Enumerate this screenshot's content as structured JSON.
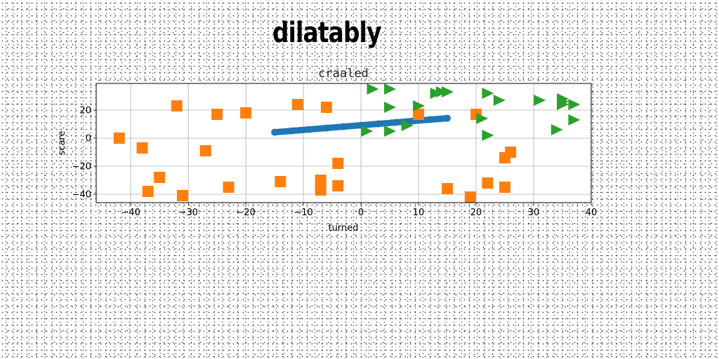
{
  "heading": "dilatably",
  "chart_data": {
    "type": "scatter",
    "title": "craaled",
    "xlabel": "turned",
    "ylabel": "scare",
    "xlim": [
      -46,
      40
    ],
    "ylim": [
      -46,
      39
    ],
    "xticks": [
      -40,
      -30,
      -20,
      -10,
      0,
      10,
      20,
      30,
      40
    ],
    "yticks": [
      -40,
      -20,
      0,
      20
    ],
    "grid": true,
    "series": [
      {
        "marker": "line-dots",
        "color": "#1f77b4",
        "points": [
          [
            -15,
            4.2
          ],
          [
            -12,
            5.2
          ],
          [
            -9,
            6.2
          ],
          [
            -6,
            7.2
          ],
          [
            -3,
            8.2
          ],
          [
            0,
            9.2
          ],
          [
            3,
            10.2
          ],
          [
            6,
            11.2
          ],
          [
            9,
            12.2
          ],
          [
            12,
            13.2
          ],
          [
            15,
            14.2
          ]
        ]
      },
      {
        "marker": "square",
        "color": "#ff7f0e",
        "points": [
          [
            -42,
            0
          ],
          [
            -38,
            -7
          ],
          [
            -37,
            -38
          ],
          [
            -35,
            -28
          ],
          [
            -32,
            23
          ],
          [
            -31,
            -41
          ],
          [
            -27,
            -9
          ],
          [
            -25,
            17
          ],
          [
            -23,
            -35
          ],
          [
            -20,
            18
          ],
          [
            -14,
            -31
          ],
          [
            -11,
            24
          ],
          [
            -7,
            -30
          ],
          [
            -7,
            -33
          ],
          [
            -7,
            -37
          ],
          [
            -6,
            22
          ],
          [
            -4,
            -18
          ],
          [
            -4,
            -34
          ],
          [
            10,
            17
          ],
          [
            15,
            -36
          ],
          [
            19,
            -42
          ],
          [
            20,
            17
          ],
          [
            22,
            -32
          ],
          [
            25,
            -35
          ],
          [
            25,
            -14
          ],
          [
            26,
            -10
          ]
        ]
      },
      {
        "marker": "triangle-right",
        "color": "#2ca02c",
        "points": [
          [
            2,
            35
          ],
          [
            5,
            35
          ],
          [
            5,
            22
          ],
          [
            10,
            23
          ],
          [
            13,
            32
          ],
          [
            14,
            33
          ],
          [
            15,
            33
          ],
          [
            21,
            14
          ],
          [
            22,
            32
          ],
          [
            22,
            2
          ],
          [
            24,
            27
          ],
          [
            31,
            27
          ],
          [
            35,
            28
          ],
          [
            35,
            26
          ],
          [
            35,
            24
          ],
          [
            37,
            24
          ],
          [
            37,
            13
          ],
          [
            34,
            6
          ],
          [
            1,
            5
          ],
          [
            5,
            5
          ],
          [
            8,
            9
          ]
        ]
      }
    ]
  }
}
